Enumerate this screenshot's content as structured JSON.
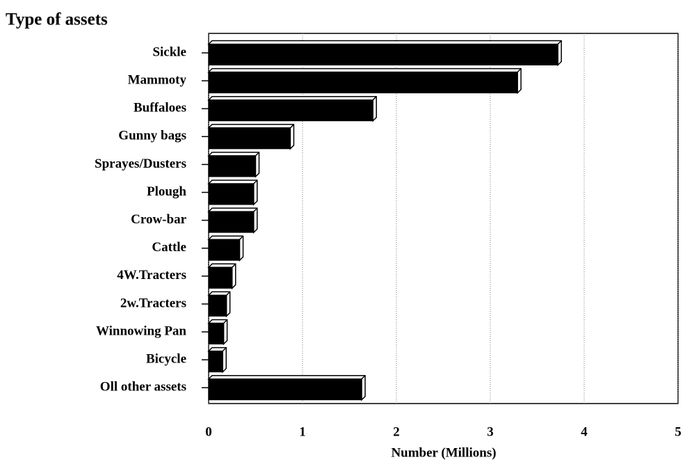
{
  "chart_data": {
    "type": "bar",
    "orientation": "horizontal",
    "title": "Type of assets",
    "x_label": "Number (Millions)",
    "categories": [
      "Sickle",
      "Mammoty",
      "Buffaloes",
      "Gunny bags",
      "Sprayes/Dusters",
      "Plough",
      "Crow-bar",
      "Cattle",
      "4W.Tracters",
      "2w.Tracters",
      "Winnowing Pan",
      "Bicycle",
      "Oll other assets"
    ],
    "values": [
      3.72,
      3.29,
      1.75,
      0.87,
      0.5,
      0.48,
      0.48,
      0.33,
      0.25,
      0.19,
      0.16,
      0.15,
      1.63
    ],
    "color": "#000000",
    "xlim": [
      0,
      5
    ],
    "xticks": [
      0,
      1,
      2,
      3,
      4,
      5
    ],
    "grid": true
  }
}
